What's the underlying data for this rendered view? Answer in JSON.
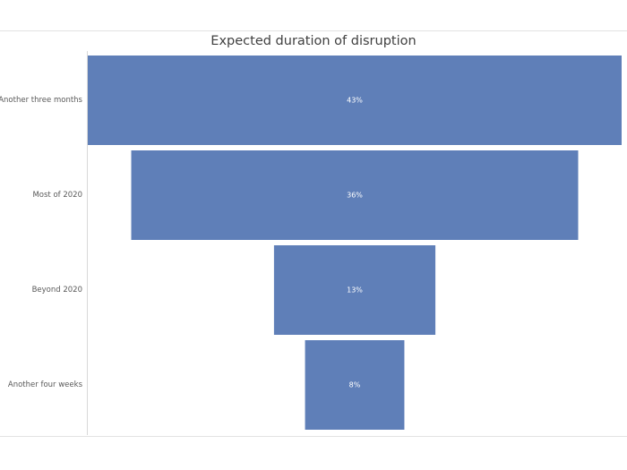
{
  "chart_data": {
    "type": "bar",
    "subtype": "funnel",
    "title": "Expected duration of disruption",
    "categories": [
      "Another three months",
      "Most of 2020",
      "Beyond 2020",
      "Another four weeks"
    ],
    "values": [
      43,
      36,
      13,
      8
    ],
    "data_labels": [
      "43%",
      "36%",
      "13%",
      "8%"
    ],
    "unit": "%",
    "orientation": "horizontal",
    "bar_color": "#5f7fb8",
    "grid": false,
    "legend": "none"
  }
}
